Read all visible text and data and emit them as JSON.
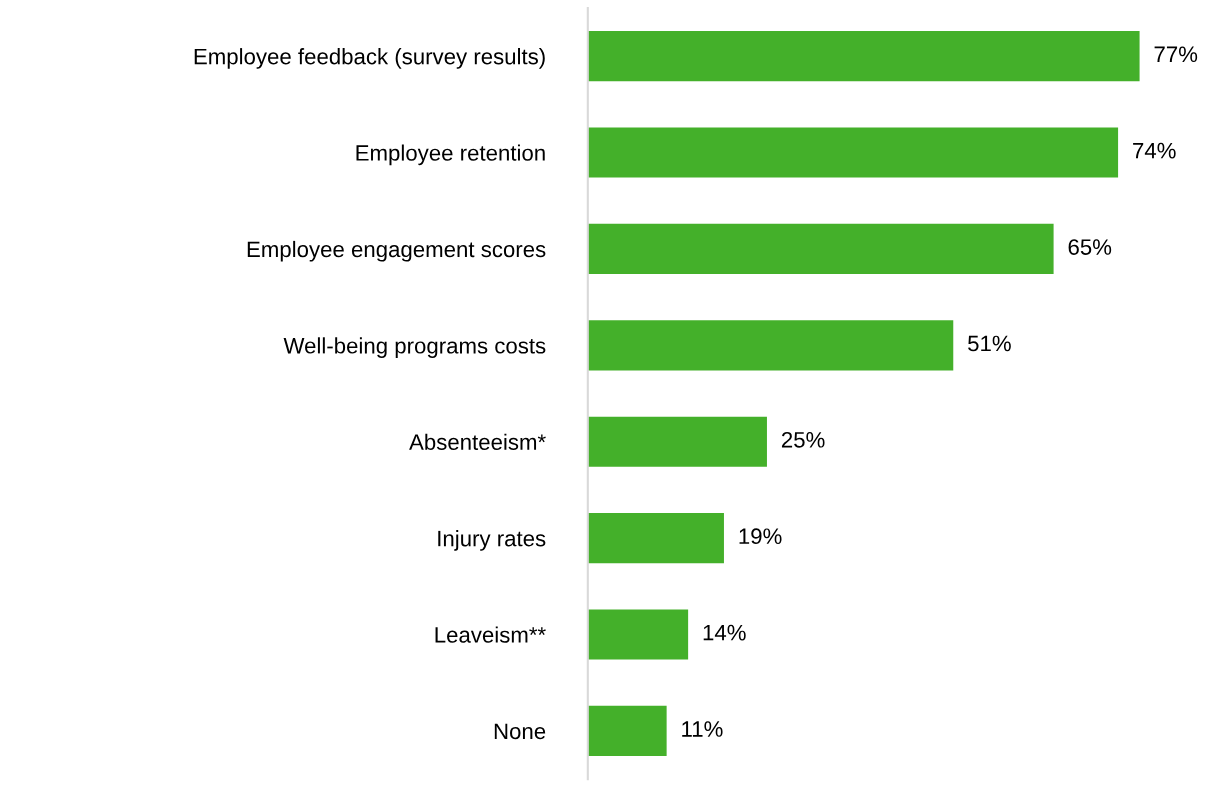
{
  "chart_data": {
    "type": "bar",
    "orientation": "horizontal",
    "categories": [
      "Employee feedback (survey results)",
      "Employee retention",
      "Employee engagement scores",
      "Well-being programs costs",
      "Absenteeism*",
      "Injury rates",
      "Leaveism**",
      "None"
    ],
    "values": [
      77,
      74,
      65,
      51,
      25,
      19,
      14,
      11
    ],
    "value_labels": [
      "77%",
      "74%",
      "65%",
      "51%",
      "25%",
      "19%",
      "14%",
      "11%"
    ],
    "color": "#44b02a",
    "grid": false,
    "legend": false
  }
}
